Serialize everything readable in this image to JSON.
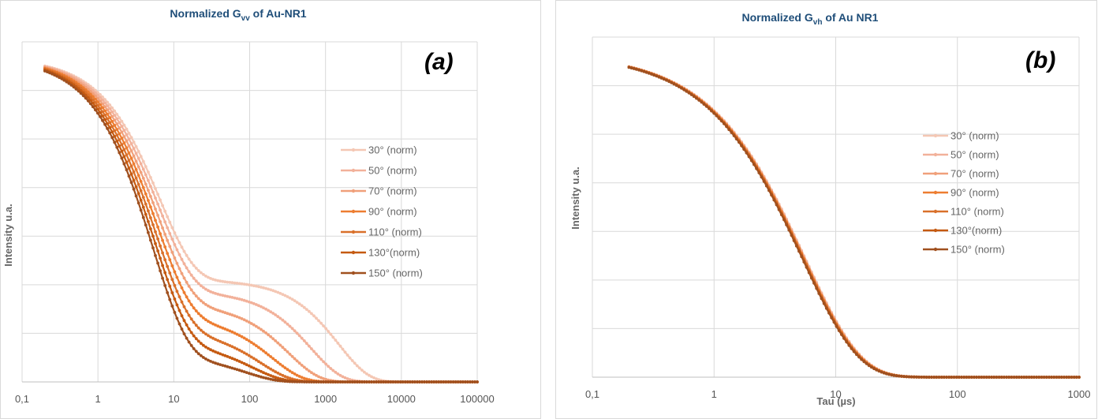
{
  "chart_data": [
    {
      "type": "line",
      "title_main": "Normalized G",
      "title_sub": "vv",
      "title_rest": " of Au-NR1",
      "panel_label": "(a)",
      "xlabel": "",
      "ylabel": "Intensity  u.a.",
      "x_scale": "log",
      "xlim": [
        0.1,
        100000
      ],
      "ylim": [
        0,
        1.05
      ],
      "x_tick_labels": [
        "0,1",
        "1",
        "10",
        "100",
        "1000",
        "10000",
        "100000"
      ],
      "grid": true,
      "legend_position": "right",
      "series": [
        {
          "name": "30° (norm)",
          "color": "#f4c7b4",
          "plateau": 0.315,
          "tau_fast": 6.5,
          "tau_slow": 1500
        },
        {
          "name": "50° (norm)",
          "color": "#f2b19a",
          "plateau": 0.28,
          "tau_fast": 6.3,
          "tau_slow": 650
        },
        {
          "name": "70° (norm)",
          "color": "#f0a07a",
          "plateau": 0.24,
          "tau_fast": 6.1,
          "tau_slow": 330
        },
        {
          "name": "90° (norm)",
          "color": "#ed7d31",
          "plateau": 0.2,
          "tau_fast": 5.9,
          "tau_slow": 200
        },
        {
          "name": "110° (norm)",
          "color": "#d9702a",
          "plateau": 0.16,
          "tau_fast": 5.7,
          "tau_slow": 140
        },
        {
          "name": "130°(norm)",
          "color": "#c55a11",
          "plateau": 0.12,
          "tau_fast": 5.5,
          "tau_slow": 110
        },
        {
          "name": "150° (norm)",
          "color": "#a0501f",
          "plateau": 0.08,
          "tau_fast": 5.3,
          "tau_slow": 90
        }
      ]
    },
    {
      "type": "line",
      "title_main": "Normalized G",
      "title_sub": "vh",
      "title_rest": " of Au NR1",
      "panel_label": "(b)",
      "xlabel": "Tau (µs)",
      "ylabel": "Intensity u.a.",
      "x_scale": "log",
      "xlim": [
        0.1,
        1000
      ],
      "ylim": [
        0,
        1.05
      ],
      "x_tick_labels": [
        "0,1",
        "1",
        "10",
        "100",
        "1000"
      ],
      "grid": true,
      "legend_position": "right",
      "series": [
        {
          "name": "30° (norm)",
          "color": "#f4c7b4",
          "tau": 5.6
        },
        {
          "name": "50° (norm)",
          "color": "#f2b19a",
          "tau": 5.55
        },
        {
          "name": "70° (norm)",
          "color": "#f0a07a",
          "tau": 5.5
        },
        {
          "name": "90° (norm)",
          "color": "#ed7d31",
          "tau": 5.45
        },
        {
          "name": "110° (norm)",
          "color": "#d9702a",
          "tau": 5.4
        },
        {
          "name": "130°(norm)",
          "color": "#c55a11",
          "tau": 5.35
        },
        {
          "name": "150° (norm)",
          "color": "#a0501f",
          "tau": 5.3
        }
      ]
    }
  ]
}
